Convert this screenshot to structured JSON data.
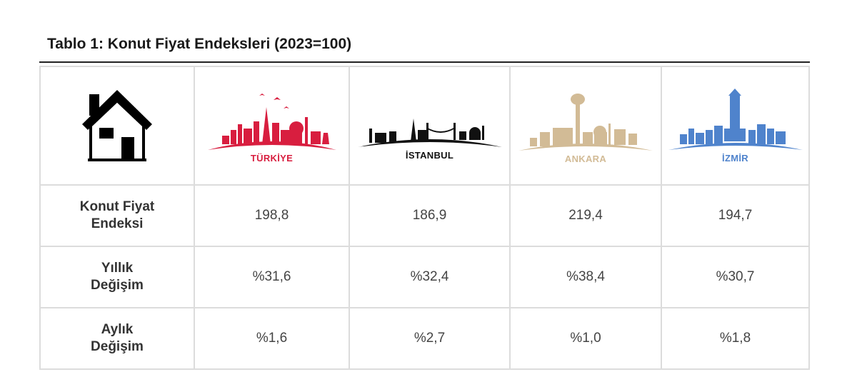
{
  "title": "Tablo 1: Konut Fiyat Endeksleri (2023=100)",
  "header": {
    "icon": "house-icon",
    "cities": [
      {
        "name": "TÜRKİYE",
        "color": "#d81e3f",
        "icon": "turkiye-skyline-icon"
      },
      {
        "name": "İSTANBUL",
        "color": "#111111",
        "icon": "istanbul-skyline-icon"
      },
      {
        "name": "ANKARA",
        "color": "#d2bb96",
        "icon": "ankara-skyline-icon"
      },
      {
        "name": "İZMİR",
        "color": "#4f83cc",
        "icon": "izmir-skyline-icon"
      }
    ]
  },
  "rows": [
    {
      "label": [
        "Konut Fiyat",
        "Endeksi"
      ],
      "values": [
        "198,8",
        "186,9",
        "219,4",
        "194,7"
      ]
    },
    {
      "label": [
        "Yıllık",
        "Değişim"
      ],
      "values": [
        "%31,6",
        "%32,4",
        "%38,4",
        "%30,7"
      ]
    },
    {
      "label": [
        "Aylık",
        "Değişim"
      ],
      "values": [
        "%1,6",
        "%2,7",
        "%1,0",
        "%1,8"
      ]
    }
  ]
}
